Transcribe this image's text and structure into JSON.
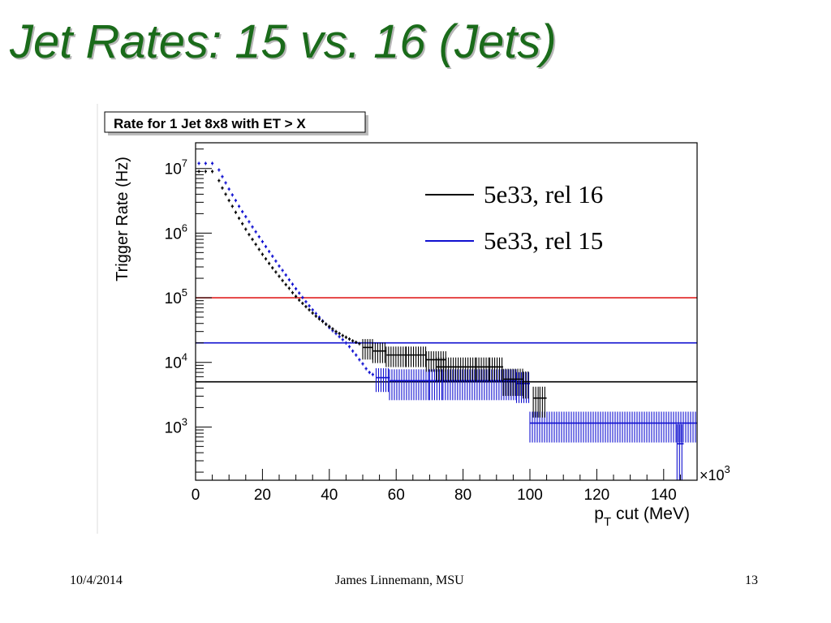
{
  "slide": {
    "title": "Jet Rates:  15 vs. 16 (Jets)",
    "footer_date": "10/4/2014",
    "footer_author": "James Linnemann, MSU",
    "footer_page": "13"
  },
  "chart_data": {
    "type": "line",
    "title": "Rate for 1 Jet 8x8 with ET > X",
    "xlabel": "p",
    "xlabel_sub": "T",
    "xlabel_rest": " cut (MeV)",
    "ylabel": "Trigger Rate (Hz)",
    "x_multiplier": "×10",
    "x_multiplier_exp": "3",
    "xlim": [
      0,
      150
    ],
    "ylim": [
      150,
      25000000
    ],
    "y_scale": "log",
    "x_ticks": [
      0,
      20,
      40,
      60,
      80,
      100,
      120,
      140
    ],
    "x_tick_labels": [
      "0",
      "20",
      "40",
      "60",
      "80",
      "100",
      "120",
      "140"
    ],
    "y_ticks": [
      1000,
      10000,
      100000,
      1000000,
      10000000
    ],
    "y_tick_base": "10",
    "y_tick_exps": [
      "3",
      "4",
      "5",
      "6",
      "7"
    ],
    "legend_position": "top-right",
    "colors": {
      "rel16": "#000000",
      "rel15": "#1010d0",
      "red_line": "#e02020",
      "blue_line": "#1010d0",
      "black_line": "#000000"
    },
    "reference_lines": [
      {
        "y": 100000,
        "color": "#e02020"
      },
      {
        "y": 20000,
        "color": "#1010d0"
      },
      {
        "y": 5000,
        "color": "#000000"
      }
    ],
    "series": [
      {
        "name": "5e33, rel 16",
        "color": "#000000",
        "points": [
          [
            1,
            9000000,
            0,
            0
          ],
          [
            3,
            9000000,
            0,
            0
          ],
          [
            5,
            9000000,
            0,
            0
          ],
          [
            7,
            6500000,
            0,
            0
          ],
          [
            8,
            5000000,
            0,
            0
          ],
          [
            9,
            4000000,
            0,
            0
          ],
          [
            10,
            3200000,
            0,
            0
          ],
          [
            11,
            2600000,
            0,
            0
          ],
          [
            12,
            2100000,
            0,
            0
          ],
          [
            13,
            1700000,
            0,
            0
          ],
          [
            14,
            1400000,
            0,
            0
          ],
          [
            15,
            1150000,
            0,
            0
          ],
          [
            16,
            950000,
            0,
            0
          ],
          [
            17,
            800000,
            0,
            0
          ],
          [
            18,
            670000,
            0,
            0
          ],
          [
            19,
            560000,
            0,
            0
          ],
          [
            20,
            470000,
            0,
            0
          ],
          [
            21,
            400000,
            0,
            0
          ],
          [
            22,
            340000,
            0,
            0
          ],
          [
            23,
            290000,
            0,
            0
          ],
          [
            24,
            250000,
            0,
            0
          ],
          [
            25,
            215000,
            0,
            0
          ],
          [
            26,
            185000,
            0,
            0
          ],
          [
            27,
            160000,
            0,
            0
          ],
          [
            28,
            140000,
            0,
            0
          ],
          [
            29,
            120000,
            0,
            0
          ],
          [
            30,
            105000,
            0,
            0
          ],
          [
            31,
            92000,
            0,
            0
          ],
          [
            32,
            82000,
            0,
            0
          ],
          [
            33,
            73000,
            0,
            0
          ],
          [
            34,
            65000,
            0,
            0
          ],
          [
            35,
            58000,
            0,
            0
          ],
          [
            36,
            52000,
            0,
            0
          ],
          [
            37,
            47000,
            0,
            0
          ],
          [
            38,
            43000,
            0,
            0
          ],
          [
            39,
            39000,
            0,
            0
          ],
          [
            40,
            36000,
            0,
            0
          ],
          [
            41,
            33000,
            0,
            0
          ],
          [
            42,
            30000,
            0,
            0
          ],
          [
            43,
            28000,
            0,
            0
          ],
          [
            44,
            26000,
            0,
            0
          ],
          [
            45,
            24500,
            0,
            0
          ],
          [
            46,
            23000,
            0,
            0
          ],
          [
            47,
            21500,
            0,
            0
          ],
          [
            48,
            20500,
            0,
            0
          ],
          [
            49,
            19500,
            0,
            0
          ],
          [
            51.5,
            17000,
            1.5,
            0.35
          ],
          [
            55,
            15000,
            2,
            0.35
          ],
          [
            60,
            13000,
            3,
            0.35
          ],
          [
            66,
            13000,
            3,
            0.35
          ],
          [
            72,
            11000,
            3,
            0.35
          ],
          [
            78,
            8500,
            6,
            0.4
          ],
          [
            86,
            8500,
            2,
            0.4
          ],
          [
            90,
            8500,
            2,
            0.4
          ],
          [
            95,
            5500,
            3,
            0.45
          ],
          [
            99,
            5000,
            1,
            0.45
          ],
          [
            102,
            2800,
            1,
            0.5
          ],
          [
            104,
            2800,
            1,
            0.5
          ]
        ]
      },
      {
        "name": "5e33, rel 15",
        "color": "#1010d0",
        "points": [
          [
            1,
            12000000,
            0,
            0
          ],
          [
            3,
            12000000,
            0,
            0
          ],
          [
            5,
            12000000,
            0,
            0
          ],
          [
            7,
            9500000,
            0,
            0
          ],
          [
            8,
            7500000,
            0,
            0
          ],
          [
            9,
            6000000,
            0,
            0
          ],
          [
            10,
            4800000,
            0,
            0
          ],
          [
            11,
            3900000,
            0,
            0
          ],
          [
            12,
            3200000,
            0,
            0
          ],
          [
            13,
            2600000,
            0,
            0
          ],
          [
            14,
            2150000,
            0,
            0
          ],
          [
            15,
            1800000,
            0,
            0
          ],
          [
            16,
            1500000,
            0,
            0
          ],
          [
            17,
            1250000,
            0,
            0
          ],
          [
            18,
            1050000,
            0,
            0
          ],
          [
            19,
            880000,
            0,
            0
          ],
          [
            20,
            740000,
            0,
            0
          ],
          [
            21,
            620000,
            0,
            0
          ],
          [
            22,
            520000,
            0,
            0
          ],
          [
            23,
            440000,
            0,
            0
          ],
          [
            24,
            370000,
            0,
            0
          ],
          [
            25,
            310000,
            0,
            0
          ],
          [
            26,
            265000,
            0,
            0
          ],
          [
            27,
            225000,
            0,
            0
          ],
          [
            28,
            190000,
            0,
            0
          ],
          [
            29,
            162000,
            0,
            0
          ],
          [
            30,
            138000,
            0,
            0
          ],
          [
            31,
            118000,
            0,
            0
          ],
          [
            32,
            101000,
            0,
            0
          ],
          [
            33,
            87000,
            0,
            0
          ],
          [
            34,
            75000,
            0,
            0
          ],
          [
            35,
            65000,
            0,
            0
          ],
          [
            36,
            57000,
            0,
            0
          ],
          [
            37,
            50000,
            0,
            0
          ],
          [
            38,
            44000,
            0,
            0
          ],
          [
            39,
            39000,
            0,
            0
          ],
          [
            40,
            34500,
            0,
            0
          ],
          [
            41,
            31000,
            0,
            0
          ],
          [
            42,
            28000,
            0,
            0
          ],
          [
            43,
            25000,
            0,
            0
          ],
          [
            44,
            22500,
            0,
            0
          ],
          [
            45,
            20000,
            0,
            0
          ],
          [
            46,
            17500,
            0,
            0
          ],
          [
            47,
            15000,
            0,
            0
          ],
          [
            48,
            13000,
            0,
            0
          ],
          [
            49,
            11000,
            0,
            0
          ],
          [
            50,
            9500,
            0,
            0
          ],
          [
            51,
            8000,
            0,
            0
          ],
          [
            52,
            7000,
            0,
            0
          ],
          [
            53,
            6500,
            0,
            0
          ],
          [
            56,
            5800,
            2,
            0.4
          ],
          [
            64,
            5200,
            6,
            0.5
          ],
          [
            72,
            5200,
            2,
            0.5
          ],
          [
            85,
            5200,
            11,
            0.5
          ],
          [
            98,
            4700,
            2,
            0.5
          ],
          [
            125,
            1150,
            25,
            0.5
          ],
          [
            145,
            550,
            1,
            1
          ]
        ]
      }
    ]
  }
}
